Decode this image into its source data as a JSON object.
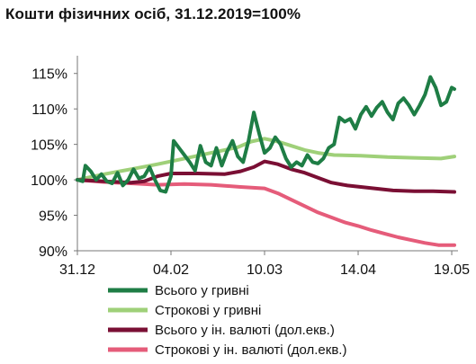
{
  "chart_data": {
    "type": "line",
    "title": "Кошти фізичних осіб, 31.12.2019=100%",
    "xlabel": "",
    "ylabel": "",
    "x_tick_labels": [
      "31.12",
      "04.02",
      "10.03",
      "14.04",
      "19.05"
    ],
    "x_ticks": [
      "2019-12-31",
      "2020-02-04",
      "2020-03-10",
      "2020-04-14",
      "2020-05-19"
    ],
    "y_tick_labels": [
      "90%",
      "95%",
      "100%",
      "105%",
      "110%",
      "115%"
    ],
    "ylim": [
      90,
      117.5
    ],
    "xlim": [
      "2019-12-31",
      "2020-05-20"
    ],
    "grid": false,
    "legend_position": "bottom",
    "series": [
      {
        "name": "Всього у гривні",
        "color": "#1e7d45",
        "points": [
          [
            "2019-12-31",
            100.0
          ],
          [
            "2020-01-02",
            99.8
          ],
          [
            "2020-01-03",
            102.0
          ],
          [
            "2020-01-05",
            101.2
          ],
          [
            "2020-01-07",
            100.0
          ],
          [
            "2020-01-09",
            100.8
          ],
          [
            "2020-01-11",
            99.8
          ],
          [
            "2020-01-13",
            99.5
          ],
          [
            "2020-01-15",
            101.0
          ],
          [
            "2020-01-17",
            99.2
          ],
          [
            "2020-01-19",
            100.0
          ],
          [
            "2020-01-21",
            101.5
          ],
          [
            "2020-01-23",
            100.2
          ],
          [
            "2020-01-25",
            100.5
          ],
          [
            "2020-01-27",
            101.8
          ],
          [
            "2020-01-29",
            100.0
          ],
          [
            "2020-01-31",
            98.5
          ],
          [
            "2020-02-02",
            98.3
          ],
          [
            "2020-02-04",
            100.5
          ],
          [
            "2020-02-05",
            105.5
          ],
          [
            "2020-02-07",
            104.5
          ],
          [
            "2020-02-09",
            103.5
          ],
          [
            "2020-02-11",
            102.5
          ],
          [
            "2020-02-13",
            101.3
          ],
          [
            "2020-02-15",
            104.8
          ],
          [
            "2020-02-17",
            102.5
          ],
          [
            "2020-02-19",
            102.0
          ],
          [
            "2020-02-21",
            104.5
          ],
          [
            "2020-02-23",
            102.0
          ],
          [
            "2020-02-25",
            104.0
          ],
          [
            "2020-02-27",
            105.5
          ],
          [
            "2020-02-29",
            103.3
          ],
          [
            "2020-03-02",
            102.5
          ],
          [
            "2020-03-04",
            105.5
          ],
          [
            "2020-03-06",
            109.5
          ],
          [
            "2020-03-08",
            106.5
          ],
          [
            "2020-03-10",
            103.8
          ],
          [
            "2020-03-12",
            104.5
          ],
          [
            "2020-03-14",
            106.0
          ],
          [
            "2020-03-16",
            105.0
          ],
          [
            "2020-03-18",
            103.0
          ],
          [
            "2020-03-20",
            101.8
          ],
          [
            "2020-03-22",
            102.5
          ],
          [
            "2020-03-24",
            102.0
          ],
          [
            "2020-03-26",
            103.5
          ],
          [
            "2020-03-28",
            102.5
          ],
          [
            "2020-03-30",
            102.3
          ],
          [
            "2020-04-01",
            103.0
          ],
          [
            "2020-04-03",
            104.5
          ],
          [
            "2020-04-05",
            105.0
          ],
          [
            "2020-04-07",
            108.8
          ],
          [
            "2020-04-09",
            108.2
          ],
          [
            "2020-04-11",
            108.6
          ],
          [
            "2020-04-13",
            107.2
          ],
          [
            "2020-04-15",
            109.2
          ],
          [
            "2020-04-17",
            110.3
          ],
          [
            "2020-04-19",
            109.0
          ],
          [
            "2020-04-21",
            110.2
          ],
          [
            "2020-04-23",
            111.0
          ],
          [
            "2020-04-25",
            109.5
          ],
          [
            "2020-04-27",
            108.5
          ],
          [
            "2020-04-29",
            110.8
          ],
          [
            "2020-05-01",
            111.5
          ],
          [
            "2020-05-03",
            110.5
          ],
          [
            "2020-05-05",
            109.2
          ],
          [
            "2020-05-07",
            110.5
          ],
          [
            "2020-05-09",
            112.0
          ],
          [
            "2020-05-11",
            114.5
          ],
          [
            "2020-05-13",
            113.0
          ],
          [
            "2020-05-15",
            110.5
          ],
          [
            "2020-05-17",
            111.0
          ],
          [
            "2020-05-19",
            113.0
          ],
          [
            "2020-05-20",
            112.8
          ]
        ]
      },
      {
        "name": "Строкові у гривні",
        "color": "#9fd079",
        "points": [
          [
            "2019-12-31",
            100.0
          ],
          [
            "2020-01-10",
            100.8
          ],
          [
            "2020-01-20",
            101.5
          ],
          [
            "2020-01-30",
            102.2
          ],
          [
            "2020-02-09",
            103.0
          ],
          [
            "2020-02-19",
            103.8
          ],
          [
            "2020-02-29",
            104.6
          ],
          [
            "2020-03-05",
            105.4
          ],
          [
            "2020-03-10",
            105.8
          ],
          [
            "2020-03-15",
            105.4
          ],
          [
            "2020-03-20",
            104.8
          ],
          [
            "2020-03-25",
            104.2
          ],
          [
            "2020-03-30",
            103.8
          ],
          [
            "2020-04-05",
            103.5
          ],
          [
            "2020-04-15",
            103.4
          ],
          [
            "2020-04-25",
            103.2
          ],
          [
            "2020-05-05",
            103.1
          ],
          [
            "2020-05-15",
            103.0
          ],
          [
            "2020-05-20",
            103.3
          ]
        ]
      },
      {
        "name": "Всього у ін. валюті (дол.екв.)",
        "color": "#7a0f34",
        "points": [
          [
            "2019-12-31",
            100.0
          ],
          [
            "2020-01-10",
            99.8
          ],
          [
            "2020-01-20",
            99.6
          ],
          [
            "2020-01-25",
            99.8
          ],
          [
            "2020-01-30",
            100.5
          ],
          [
            "2020-02-04",
            100.9
          ],
          [
            "2020-02-14",
            100.9
          ],
          [
            "2020-02-24",
            100.8
          ],
          [
            "2020-03-01",
            101.2
          ],
          [
            "2020-03-06",
            101.8
          ],
          [
            "2020-03-10",
            102.6
          ],
          [
            "2020-03-15",
            102.2
          ],
          [
            "2020-03-20",
            101.5
          ],
          [
            "2020-03-25",
            101.0
          ],
          [
            "2020-03-30",
            100.3
          ],
          [
            "2020-04-04",
            99.6
          ],
          [
            "2020-04-10",
            99.2
          ],
          [
            "2020-04-15",
            99.0
          ],
          [
            "2020-04-20",
            98.8
          ],
          [
            "2020-04-27",
            98.5
          ],
          [
            "2020-05-05",
            98.4
          ],
          [
            "2020-05-12",
            98.4
          ],
          [
            "2020-05-20",
            98.3
          ]
        ]
      },
      {
        "name": "Строкові у ін. валюті (дол.екв.)",
        "color": "#e55c7a",
        "points": [
          [
            "2019-12-31",
            100.0
          ],
          [
            "2020-01-10",
            99.7
          ],
          [
            "2020-01-20",
            99.5
          ],
          [
            "2020-01-30",
            99.3
          ],
          [
            "2020-02-09",
            99.4
          ],
          [
            "2020-02-19",
            99.3
          ],
          [
            "2020-03-01",
            99.0
          ],
          [
            "2020-03-10",
            98.8
          ],
          [
            "2020-03-15",
            98.1
          ],
          [
            "2020-03-20",
            97.2
          ],
          [
            "2020-03-25",
            96.3
          ],
          [
            "2020-03-30",
            95.4
          ],
          [
            "2020-04-04",
            94.7
          ],
          [
            "2020-04-09",
            94.0
          ],
          [
            "2020-04-14",
            93.5
          ],
          [
            "2020-04-19",
            92.9
          ],
          [
            "2020-04-24",
            92.4
          ],
          [
            "2020-04-29",
            91.9
          ],
          [
            "2020-05-04",
            91.5
          ],
          [
            "2020-05-09",
            91.1
          ],
          [
            "2020-05-14",
            90.8
          ],
          [
            "2020-05-20",
            90.8
          ]
        ]
      }
    ]
  }
}
